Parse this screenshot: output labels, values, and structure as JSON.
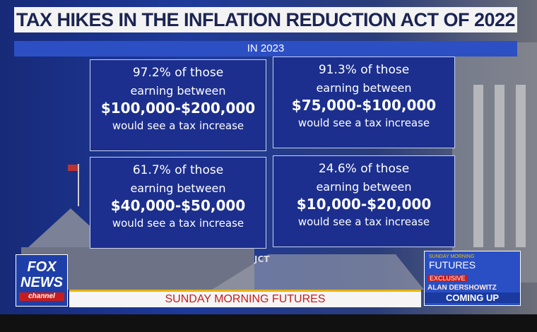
{
  "header": {
    "title": "TAX HIKES IN THE INFLATION REDUCTION ACT OF 2022",
    "subtitle": "IN 2023"
  },
  "boxes": [
    {
      "lines": [
        "97.2% of those",
        "earning between",
        "$100,000-$200,000",
        "would see a tax increase"
      ]
    },
    {
      "lines": [
        "91.3% of those",
        "earning between",
        "$75,000-$100,000",
        "would see a tax increase"
      ]
    },
    {
      "lines": [
        "61.7% of those",
        "earning between",
        "$40,000-$50,000",
        "would see a tax increase"
      ]
    },
    {
      "lines": [
        "24.6% of those",
        "earning between",
        "$10,000-$20,000",
        "would see a tax increase"
      ]
    }
  ],
  "source": "JCT",
  "logo": {
    "lines": [
      "FOX",
      "NEWS",
      "channel"
    ]
  },
  "ticker": "SUNDAY MORNING FUTURES",
  "promo": {
    "show_top": "SUNDAY MORNING",
    "show": "FUTURES",
    "tag": "EXCLUSIVE",
    "guest": "ALAN DERSHOWITZ",
    "status": "COMING UP"
  }
}
